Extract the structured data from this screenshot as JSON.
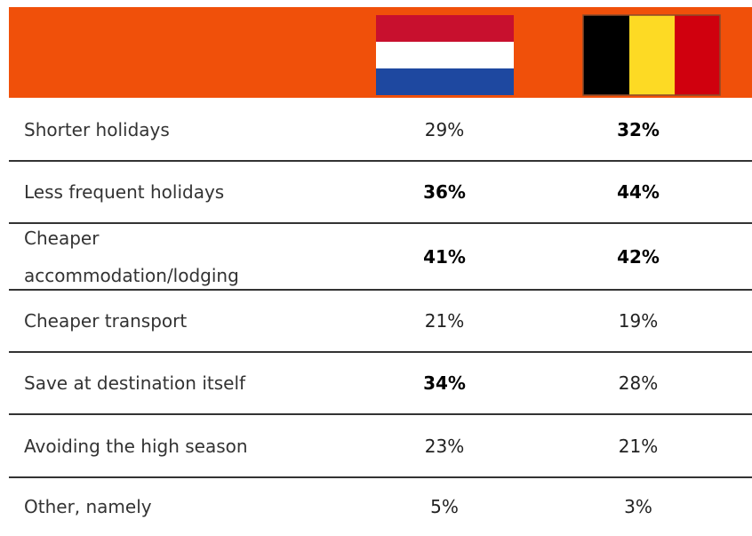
{
  "table": {
    "rows": [
      {
        "label": "Shorter holidays",
        "cells": [
          "29%",
          "32%"
        ],
        "bold": [
          false,
          true
        ]
      },
      {
        "label": "Less frequent holidays",
        "cells": [
          "36%",
          "44%"
        ],
        "bold": [
          true,
          true
        ]
      },
      {
        "label": "Cheaper accommodation/lodging",
        "cells": [
          "41%",
          "42%"
        ],
        "bold": [
          true,
          true
        ]
      },
      {
        "label": "Cheaper transport",
        "cells": [
          "21%",
          "19%"
        ],
        "bold": [
          false,
          false
        ]
      },
      {
        "label": "Save at destination itself",
        "cells": [
          "34%",
          "28%"
        ],
        "bold": [
          true,
          false
        ]
      },
      {
        "label": "Avoiding the high season",
        "cells": [
          "23%",
          "21%"
        ],
        "bold": [
          false,
          false
        ]
      },
      {
        "label": "Other, namely",
        "cells": [
          "5%",
          "3%"
        ],
        "bold": [
          false,
          false
        ]
      }
    ]
  }
}
